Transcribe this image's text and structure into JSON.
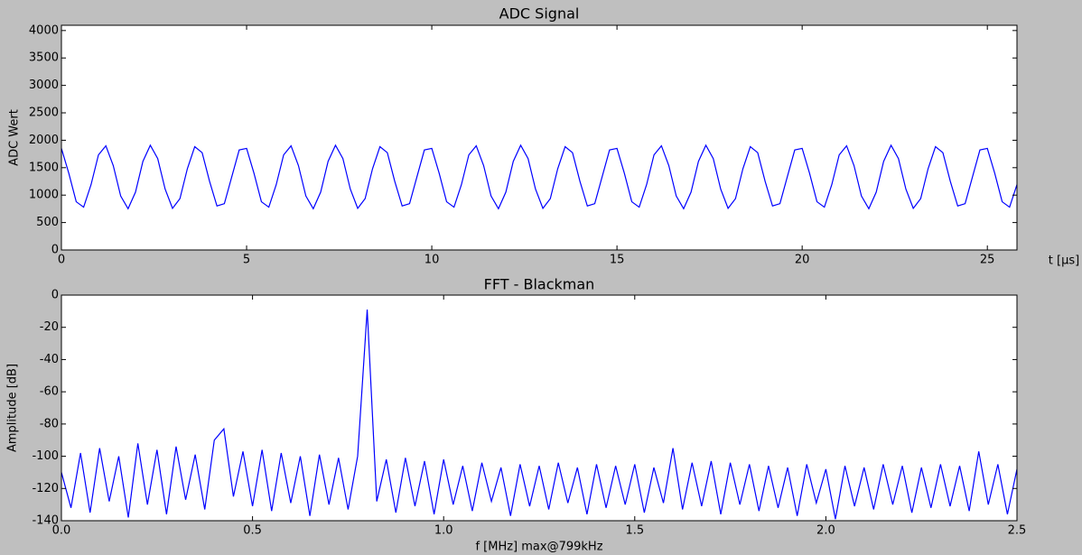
{
  "chart_data": [
    {
      "type": "line",
      "title": "ADC Signal",
      "xlabel": "t [μs]",
      "ylabel": "ADC Wert",
      "x": [
        0,
        0.2,
        0.4,
        0.6,
        0.8,
        1,
        1.2,
        1.4,
        1.6,
        1.8,
        2,
        2.2,
        2.4,
        2.6,
        2.8,
        3,
        3.2,
        3.4,
        3.6,
        3.8,
        4,
        4.2,
        4.4,
        4.6,
        4.8,
        5,
        5.2,
        5.4,
        5.6,
        5.8,
        6,
        6.2,
        6.4,
        6.6,
        6.8,
        7,
        7.2,
        7.4,
        7.6,
        7.8,
        8,
        8.2,
        8.4,
        8.6,
        8.8,
        9,
        9.2,
        9.4,
        9.6,
        9.8,
        10,
        10.2,
        10.4,
        10.6,
        10.8,
        11,
        11.2,
        11.4,
        11.6,
        11.8,
        12,
        12.2,
        12.4,
        12.6,
        12.8,
        13,
        13.2,
        13.4,
        13.6,
        13.8,
        14,
        14.2,
        14.4,
        14.6,
        14.8,
        15,
        15.2,
        15.4,
        15.6,
        15.8,
        16,
        16.2,
        16.4,
        16.6,
        16.8,
        17,
        17.2,
        17.4,
        17.6,
        17.8,
        18,
        18.2,
        18.4,
        18.6,
        18.8,
        19,
        19.2,
        19.4,
        19.6,
        19.8,
        20,
        20.2,
        20.4,
        20.6,
        20.8,
        21,
        21.2,
        21.4,
        21.6,
        21.8,
        22,
        22.2,
        22.4,
        22.6,
        22.8,
        23,
        23.2,
        23.4,
        23.6,
        23.8,
        24,
        24.2,
        24.4,
        24.6,
        24.8,
        25,
        25.2,
        25.4,
        25.6,
        25.8
      ],
      "values": [
        1852,
        1397,
        879,
        780,
        1191,
        1734,
        1899,
        1538,
        985,
        752,
        1055,
        1615,
        1909,
        1666,
        1111,
        759,
        936,
        1480,
        1883,
        1773,
        1251,
        802,
        844,
        1336,
        1823,
        1852,
        1397,
        879,
        780,
        1191,
        1734,
        1899,
        1538,
        985,
        752,
        1055,
        1615,
        1909,
        1666,
        1111,
        759,
        936,
        1480,
        1883,
        1773,
        1251,
        802,
        844,
        1336,
        1823,
        1852,
        1397,
        879,
        780,
        1191,
        1734,
        1899,
        1538,
        985,
        752,
        1055,
        1615,
        1909,
        1666,
        1111,
        759,
        936,
        1480,
        1883,
        1773,
        1251,
        802,
        844,
        1336,
        1823,
        1852,
        1397,
        879,
        780,
        1191,
        1734,
        1899,
        1538,
        985,
        752,
        1055,
        1615,
        1909,
        1666,
        1111,
        759,
        936,
        1480,
        1883,
        1773,
        1251,
        802,
        844,
        1336,
        1823,
        1852,
        1397,
        879,
        780,
        1191,
        1734,
        1899,
        1538,
        985,
        752,
        1055,
        1615,
        1909,
        1666,
        1111,
        759,
        936,
        1480,
        1883,
        1773,
        1251,
        802,
        844,
        1336,
        1823,
        1852,
        1397,
        879,
        780,
        1191
      ],
      "color": "#0000ff",
      "xlim": [
        0,
        25.8
      ],
      "ylim": [
        0,
        4096
      ],
      "xticks": [
        0,
        5,
        10,
        15,
        20,
        25
      ],
      "yticks": [
        0,
        500,
        1000,
        1500,
        2000,
        2500,
        3000,
        3500,
        4000
      ]
    },
    {
      "type": "line",
      "title": "FFT - Blackman",
      "xlabel": "f [MHz] max@799kHz",
      "ylabel": "Amplitude [dB]",
      "x": [
        0,
        0.025,
        0.05,
        0.075,
        0.1,
        0.125,
        0.15,
        0.175,
        0.2,
        0.225,
        0.25,
        0.275,
        0.3,
        0.325,
        0.35,
        0.375,
        0.4,
        0.425,
        0.45,
        0.475,
        0.5,
        0.525,
        0.55,
        0.575,
        0.6,
        0.625,
        0.65,
        0.675,
        0.7,
        0.725,
        0.75,
        0.775,
        0.8,
        0.825,
        0.85,
        0.875,
        0.9,
        0.925,
        0.95,
        0.975,
        1,
        1.025,
        1.05,
        1.075,
        1.1,
        1.125,
        1.15,
        1.175,
        1.2,
        1.225,
        1.25,
        1.275,
        1.3,
        1.325,
        1.35,
        1.375,
        1.4,
        1.425,
        1.45,
        1.475,
        1.5,
        1.525,
        1.55,
        1.575,
        1.6,
        1.625,
        1.65,
        1.675,
        1.7,
        1.725,
        1.75,
        1.775,
        1.8,
        1.825,
        1.85,
        1.875,
        1.9,
        1.925,
        1.95,
        1.975,
        2,
        2.025,
        2.05,
        2.075,
        2.1,
        2.125,
        2.15,
        2.175,
        2.2,
        2.225,
        2.25,
        2.275,
        2.3,
        2.325,
        2.35,
        2.375,
        2.4,
        2.425,
        2.45,
        2.475,
        2.5
      ],
      "values": [
        -110,
        -132,
        -98,
        -135,
        -95,
        -128,
        -100,
        -138,
        -92,
        -130,
        -96,
        -136,
        -94,
        -127,
        -99,
        -133,
        -90,
        -83,
        -125,
        -97,
        -131,
        -96,
        -134,
        -98,
        -129,
        -100,
        -137,
        -99,
        -130,
        -101,
        -133,
        -100,
        -9,
        -128,
        -102,
        -135,
        -101,
        -131,
        -103,
        -136,
        -102,
        -130,
        -106,
        -134,
        -104,
        -128,
        -107,
        -137,
        -105,
        -131,
        -106,
        -133,
        -104,
        -129,
        -107,
        -136,
        -105,
        -132,
        -106,
        -130,
        -105,
        -135,
        -107,
        -129,
        -95,
        -133,
        -104,
        -131,
        -103,
        -136,
        -104,
        -130,
        -105,
        -134,
        -106,
        -132,
        -107,
        -137,
        -105,
        -129,
        -108,
        -139,
        -106,
        -131,
        -107,
        -133,
        -105,
        -130,
        -106,
        -135,
        -107,
        -132,
        -105,
        -131,
        -106,
        -134,
        -97,
        -130,
        -105,
        -136,
        -108
      ],
      "color": "#0000ff",
      "xlim": [
        0,
        2.5
      ],
      "ylim": [
        -140,
        0
      ],
      "xticks": [
        {
          "value": 0,
          "label": "0.0"
        },
        0.5,
        {
          "value": 1,
          "label": "1.0"
        },
        1.5,
        {
          "value": 2,
          "label": "2.0"
        },
        2.5
      ],
      "yticks": [
        -140,
        -120,
        -100,
        -80,
        -60,
        -40,
        -20,
        0
      ]
    }
  ]
}
